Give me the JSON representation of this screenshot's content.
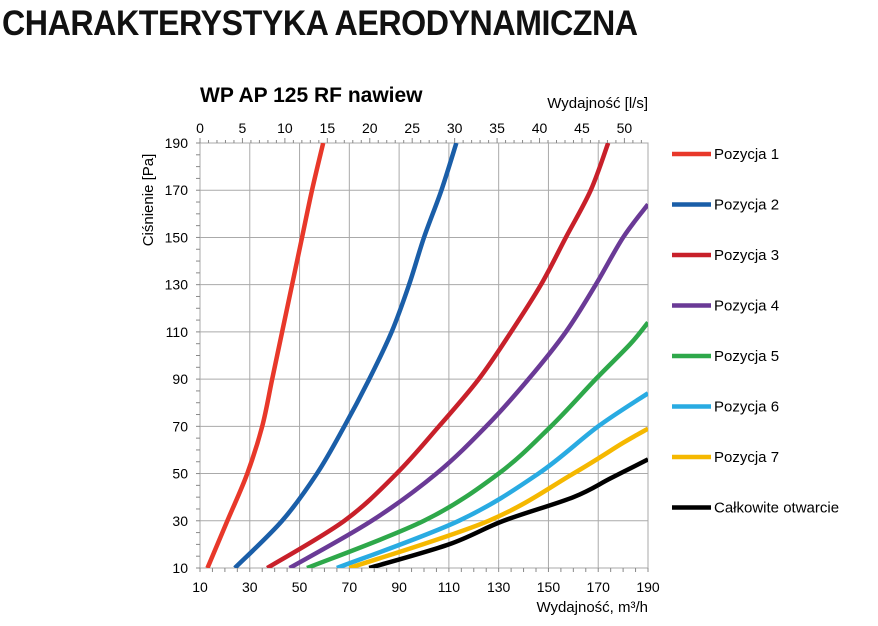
{
  "page": {
    "heading": "CHARAKTERYSTYKA AERODYNAMICZNA"
  },
  "chart_data": {
    "type": "line",
    "title": "WP AP 125 RF nawiew",
    "xlabel": "Wydajność, m³/h",
    "x2label": "Wydajność [l/s]",
    "ylabel": "Ciśnienie [Pa]",
    "xlim": [
      10,
      190
    ],
    "ylim": [
      10,
      190
    ],
    "x2lim": [
      0,
      52.78
    ],
    "xticks": [
      10,
      30,
      50,
      70,
      90,
      110,
      130,
      150,
      170,
      190
    ],
    "yticks": [
      10,
      30,
      50,
      70,
      90,
      110,
      130,
      150,
      170,
      190
    ],
    "x2ticks": [
      0,
      5,
      10,
      15,
      20,
      25,
      30,
      35,
      40,
      45,
      50
    ],
    "grid": true,
    "legend_position": "right",
    "series": [
      {
        "name": "Pozycja 1",
        "color": "#e8382a",
        "points": [
          [
            13,
            10
          ],
          [
            21,
            30
          ],
          [
            29,
            50
          ],
          [
            35,
            70
          ],
          [
            39,
            90
          ],
          [
            43,
            110
          ],
          [
            47,
            130
          ],
          [
            51,
            150
          ],
          [
            55,
            170
          ],
          [
            59.5,
            190
          ]
        ]
      },
      {
        "name": "Pozycja 2",
        "color": "#1a5ea8",
        "points": [
          [
            24,
            10
          ],
          [
            43,
            30
          ],
          [
            57,
            50
          ],
          [
            68,
            70
          ],
          [
            78,
            90
          ],
          [
            87,
            110
          ],
          [
            94,
            130
          ],
          [
            100,
            150
          ],
          [
            107,
            170
          ],
          [
            113,
            190
          ]
        ]
      },
      {
        "name": "Pozycja 3",
        "color": "#c8202a",
        "points": [
          [
            37,
            10
          ],
          [
            68,
            30
          ],
          [
            89,
            50
          ],
          [
            106,
            70
          ],
          [
            122,
            90
          ],
          [
            135,
            110
          ],
          [
            147,
            130
          ],
          [
            157,
            150
          ],
          [
            167,
            170
          ],
          [
            174,
            190
          ]
        ]
      },
      {
        "name": "Pozycja 4",
        "color": "#6a3a96",
        "points": [
          [
            46,
            10
          ],
          [
            79,
            30
          ],
          [
            105,
            50
          ],
          [
            125,
            70
          ],
          [
            142,
            90
          ],
          [
            157,
            110
          ],
          [
            169,
            130
          ],
          [
            180,
            150
          ],
          [
            190,
            164
          ]
        ]
      },
      {
        "name": "Pozycja 5",
        "color": "#2ea84a",
        "points": [
          [
            53,
            10
          ],
          [
            100,
            30
          ],
          [
            130,
            50
          ],
          [
            151,
            70
          ],
          [
            169,
            90
          ],
          [
            183,
            105
          ],
          [
            190,
            114
          ]
        ]
      },
      {
        "name": "Pozycja 6",
        "color": "#29abe2",
        "points": [
          [
            65,
            10
          ],
          [
            114,
            30
          ],
          [
            146,
            50
          ],
          [
            170,
            70
          ],
          [
            190,
            84
          ]
        ]
      },
      {
        "name": "Pozycja 7",
        "color": "#f5b800",
        "points": [
          [
            70,
            10
          ],
          [
            126,
            30
          ],
          [
            160,
            50
          ],
          [
            180,
            63
          ],
          [
            190,
            69
          ]
        ]
      },
      {
        "name": "Całkowite otwarcie",
        "color": "#000000",
        "points": [
          [
            78,
            10
          ],
          [
            110,
            20
          ],
          [
            132,
            30
          ],
          [
            160,
            40
          ],
          [
            175,
            48
          ],
          [
            190,
            56
          ]
        ]
      }
    ]
  }
}
